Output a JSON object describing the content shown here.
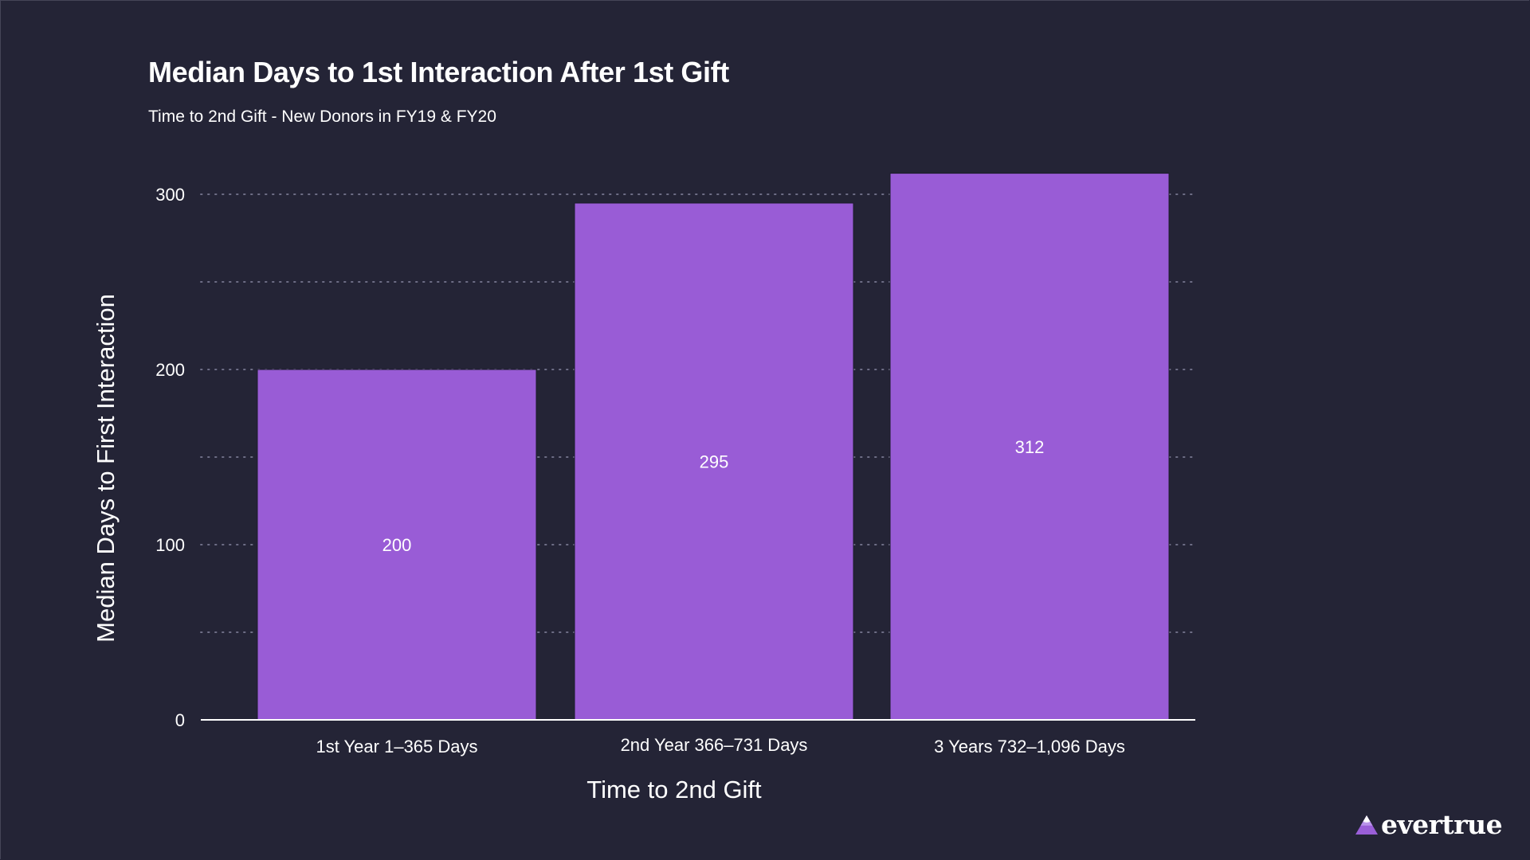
{
  "chart_data": {
    "type": "bar",
    "title": "Median Days to 1st Interaction After 1st Gift",
    "subtitle": "Time to 2nd Gift - New Donors in FY19 & FY20",
    "xlabel": "Time to 2nd Gift",
    "ylabel": "Median Days to First Interaction",
    "categories": [
      "1st Year 1–365 Days",
      "2nd Year 366–731 Days",
      "3 Years 732–1,096 Days"
    ],
    "values": [
      200,
      295,
      312
    ],
    "data_labels": [
      "200",
      "295",
      "312"
    ],
    "ylim": [
      0,
      320
    ],
    "yticks": [
      0,
      100,
      200,
      300
    ],
    "ytick_labels": [
      "0",
      "100",
      "200",
      "300"
    ],
    "minor_gridlines": [
      50,
      150,
      250
    ],
    "grid": true,
    "legend": "none",
    "colors": {
      "background": "#242436",
      "bar": "#995cd6",
      "grid": "#6e6e86",
      "axis": "#ffffff",
      "text": "#ffffff"
    }
  },
  "branding": {
    "logo_icon": "mountain-triangle-icon",
    "logo_text": "evertrue"
  }
}
